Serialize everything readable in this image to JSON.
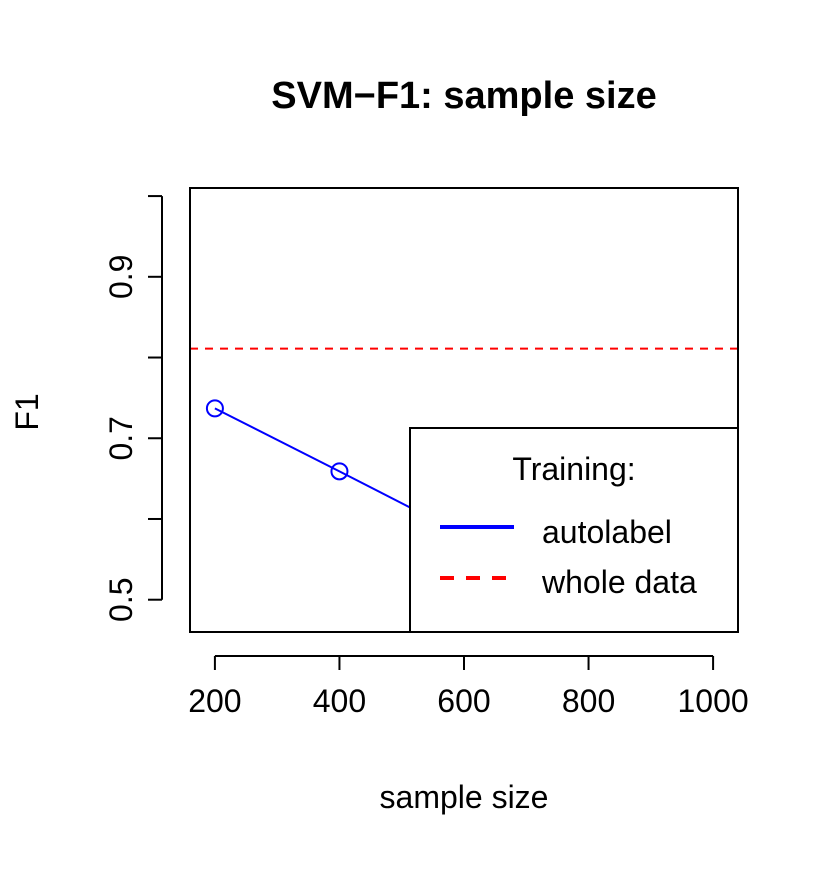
{
  "chart_data": {
    "type": "line",
    "title": "SVM−F1: sample size",
    "xlabel": "sample size",
    "ylabel": "F1",
    "xlim": [
      160,
      1040
    ],
    "ylim": [
      0.46,
      1.01
    ],
    "x_ticks": [
      200,
      400,
      600,
      800,
      1000
    ],
    "x_tick_labels": [
      "200",
      "400",
      "600",
      "800",
      "1000"
    ],
    "y_ticks": [
      0.5,
      0.6,
      0.7,
      0.8,
      0.9,
      1.0
    ],
    "y_tick_labels": [
      "0.5",
      "",
      "0.7",
      "",
      "0.9",
      ""
    ],
    "grid": false,
    "series": [
      {
        "name": "autolabel",
        "color": "#0000ff",
        "line_style": "solid",
        "marker": "open-circle",
        "x": [
          200,
          400,
          600
        ],
        "y": [
          0.737,
          0.659,
          0.58
        ]
      }
    ],
    "reference_lines": [
      {
        "name": "whole data",
        "orientation": "horizontal",
        "y": 0.811,
        "color": "#ff0000",
        "line_style": "dashed"
      }
    ],
    "legend": {
      "title": "Training:",
      "position": "bottom-right",
      "entries": [
        "autolabel",
        "whole data"
      ]
    }
  }
}
